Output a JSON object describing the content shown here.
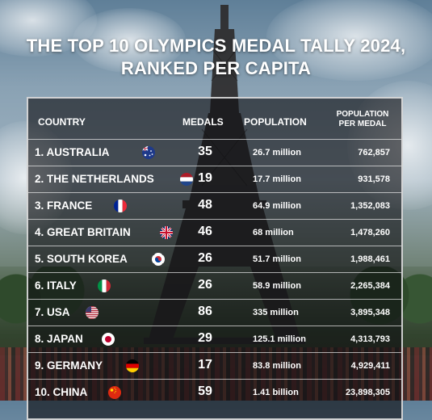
{
  "title": {
    "line1": "THE TOP 10 OLYMPICS MEDAL TALLY 2024,",
    "line2": "RANKED PER CAPITA"
  },
  "table": {
    "headers": {
      "country": "COUNTRY",
      "medals": "MEDALS",
      "population": "POPULATION",
      "per_medal_line1": "POPULATION",
      "per_medal_line2": "PER MEDAL"
    },
    "rows": [
      {
        "country": "1. AUSTRALIA",
        "flag": "australia-flag-icon",
        "medals": "35",
        "population": "26.7 million",
        "per_medal": "762,857"
      },
      {
        "country": "2. THE NETHERLANDS",
        "flag": "netherlands-flag-icon",
        "medals": "19",
        "population": "17.7 million",
        "per_medal": "931,578"
      },
      {
        "country": "3. FRANCE",
        "flag": "france-flag-icon",
        "medals": "48",
        "population": "64.9 million",
        "per_medal": "1,352,083"
      },
      {
        "country": "4. GREAT BRITAIN",
        "flag": "great-britain-flag-icon",
        "medals": "46",
        "population": "68 million",
        "per_medal": "1,478,260"
      },
      {
        "country": "5. SOUTH KOREA",
        "flag": "south-korea-flag-icon",
        "medals": "26",
        "population": "51.7 million",
        "per_medal": "1,988,461"
      },
      {
        "country": "6. ITALY",
        "flag": "italy-flag-icon",
        "medals": "26",
        "population": "58.9 million",
        "per_medal": "2,265,384"
      },
      {
        "country": "7. USA",
        "flag": "usa-flag-icon",
        "medals": "86",
        "population": "335 million",
        "per_medal": "3,895,348"
      },
      {
        "country": "8. JAPAN",
        "flag": "japan-flag-icon",
        "medals": "29",
        "population": "125.1 million",
        "per_medal": "4,313,793"
      },
      {
        "country": "9. GERMANY",
        "flag": "germany-flag-icon",
        "medals": "17",
        "population": "83.8 million",
        "per_medal": "4,929,411"
      },
      {
        "country": "10. CHINA",
        "flag": "china-flag-icon",
        "medals": "59",
        "population": "1.41 billion",
        "per_medal": "23,898,305"
      }
    ]
  }
}
